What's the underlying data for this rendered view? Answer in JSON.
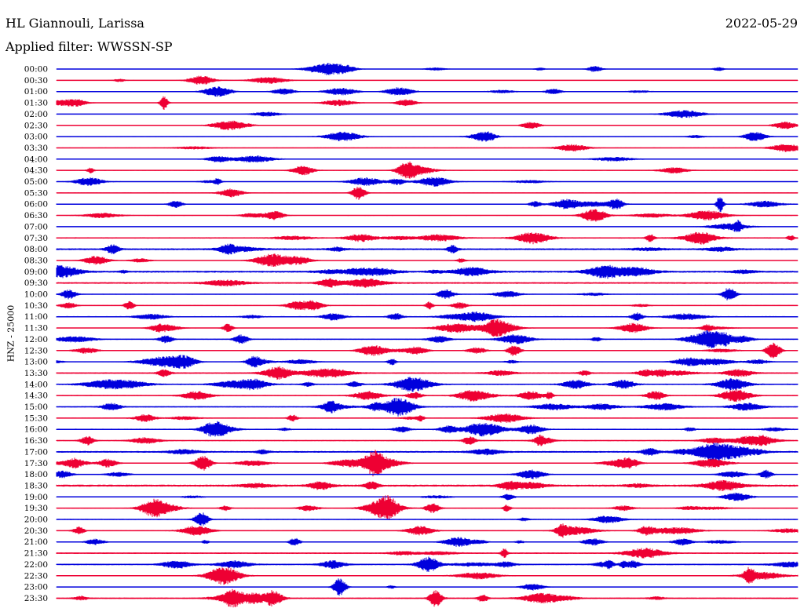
{
  "header": {
    "station": "HL Giannouli, Larissa",
    "filter": "Applied filter: WWSSN-SP",
    "date": "2022-05-29"
  },
  "chart_data": {
    "type": "line",
    "title": "HL Giannouli, Larissa",
    "subtitle": "Applied filter: WWSSN-SP",
    "ylabel": "HNZ - 25000",
    "date": "2022-05-29",
    "row_labels": [
      "00:00",
      "00:30",
      "01:00",
      "01:30",
      "02:00",
      "02:30",
      "03:00",
      "03:30",
      "04:00",
      "04:30",
      "05:00",
      "05:30",
      "06:00",
      "06:30",
      "07:00",
      "07:30",
      "08:00",
      "08:30",
      "09:00",
      "09:30",
      "10:00",
      "10:30",
      "11:00",
      "11:30",
      "12:00",
      "12:30",
      "13:00",
      "13:30",
      "14:00",
      "14:30",
      "15:00",
      "15:30",
      "16:00",
      "16:30",
      "17:00",
      "17:30",
      "18:00",
      "18:30",
      "19:00",
      "19:30",
      "20:00",
      "20:30",
      "21:00",
      "21:30",
      "22:00",
      "22:30",
      "23:00",
      "23:30"
    ],
    "colors": [
      "#0000dd",
      "#ee0033"
    ],
    "grid": false,
    "legend": "none"
  }
}
